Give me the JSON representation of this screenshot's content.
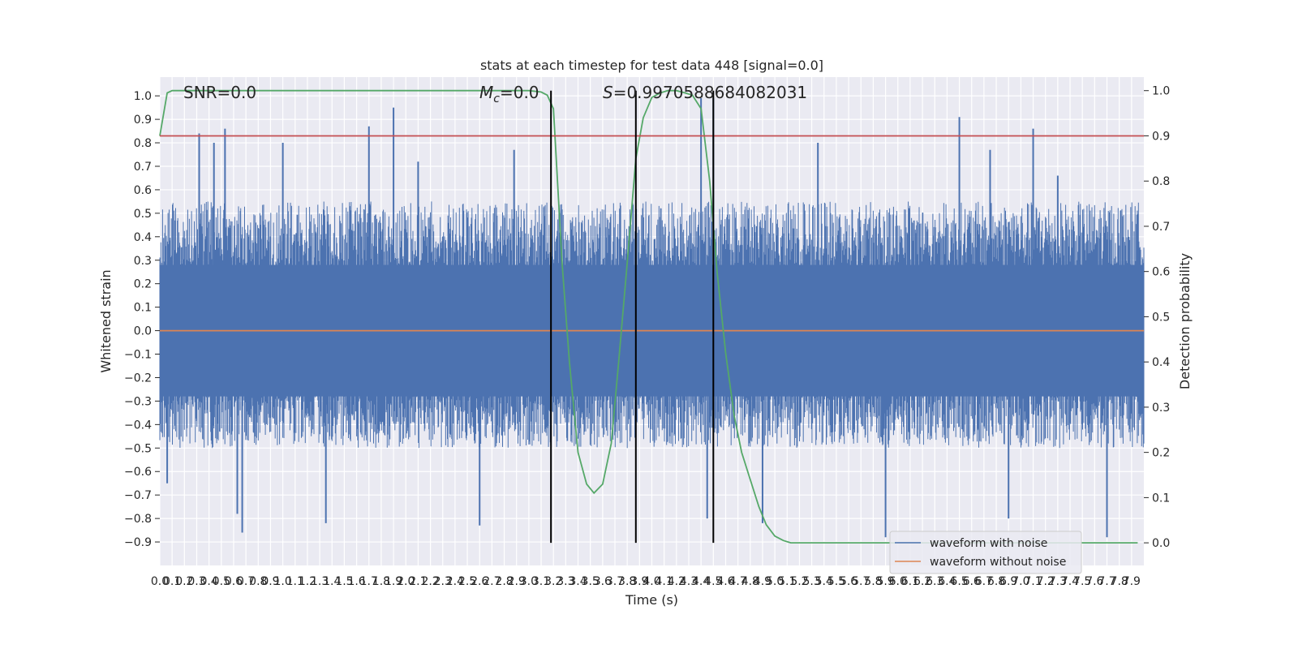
{
  "chart_data": {
    "type": "line",
    "title": "stats at each timestep for test data 448 [signal=0.0]",
    "xlabel": "Time (s)",
    "ylabel": "Whitened strain",
    "ylabel_right": "Detection probability",
    "xlim": [
      0.0,
      8.0
    ],
    "ylim": [
      -1.0,
      1.08
    ],
    "ylim_right": [
      -0.05,
      1.03
    ],
    "x_ticks": [
      0.0,
      0.1,
      0.2,
      0.3,
      0.4,
      0.5,
      0.6,
      0.7,
      0.8,
      0.9,
      1.0,
      1.1,
      1.2,
      1.3,
      1.4,
      1.5,
      1.6,
      1.7,
      1.8,
      1.9,
      2.0,
      2.1,
      2.2,
      2.3,
      2.4,
      2.5,
      2.6,
      2.7,
      2.8,
      2.9,
      3.0,
      3.1,
      3.2,
      3.3,
      3.4,
      3.5,
      3.6,
      3.7,
      3.8,
      3.9,
      4.0,
      4.1,
      4.2,
      4.3,
      4.4,
      4.5,
      4.6,
      4.7,
      4.8,
      4.9,
      5.0,
      5.1,
      5.2,
      5.3,
      5.4,
      5.5,
      5.6,
      5.7,
      5.8,
      5.9,
      6.0,
      6.1,
      6.2,
      6.3,
      6.4,
      6.5,
      6.6,
      6.7,
      6.8,
      6.9,
      7.0,
      7.1,
      7.2,
      7.3,
      7.4,
      7.5,
      7.6,
      7.7,
      7.8,
      7.9
    ],
    "y_ticks": [
      1.0,
      0.9,
      0.8,
      0.7,
      0.6,
      0.5,
      0.4,
      0.3,
      0.2,
      0.1,
      0.0,
      -0.1,
      -0.2,
      -0.3,
      -0.4,
      -0.5,
      -0.6,
      -0.7,
      -0.8,
      -0.9
    ],
    "y_tick_labels": [
      "1.0",
      "0.9",
      "0.8",
      "0.7",
      "0.6",
      "0.5",
      "0.4",
      "0.3",
      "0.2",
      "0.1",
      "0.0",
      "−0.1",
      "−0.2",
      "−0.3",
      "−0.4",
      "−0.5",
      "−0.6",
      "−0.7",
      "−0.8",
      "−0.9"
    ],
    "y_ticks_right": [
      1.0,
      0.9,
      0.8,
      0.7,
      0.6,
      0.5,
      0.4,
      0.3,
      0.2,
      0.1,
      0.0
    ],
    "y_tick_labels_right": [
      "1.0",
      "0.9",
      "0.8",
      "0.7",
      "0.6",
      "0.5",
      "0.4",
      "0.3",
      "0.2",
      "0.1",
      "0.0"
    ],
    "grid": true,
    "legend_placement": "lower-right",
    "annotations": {
      "snr": "SNR=0.0",
      "mc_symbol": "M",
      "mc_sub": "c",
      "mc_value": "=0.0",
      "s_symbol": "S",
      "s_value": "=0.9970588684082031"
    },
    "series": [
      {
        "name": "waveform with noise",
        "axis": "left",
        "color": "#4c72b0",
        "kind": "noise",
        "envelope_pos": 0.55,
        "envelope_neg": -0.5,
        "spike_peaks": [
          {
            "x": 0.32,
            "y": 0.84
          },
          {
            "x": 0.44,
            "y": 0.8
          },
          {
            "x": 0.53,
            "y": 0.86
          },
          {
            "x": 1.0,
            "y": 0.8
          },
          {
            "x": 1.7,
            "y": 0.87
          },
          {
            "x": 1.9,
            "y": 0.95
          },
          {
            "x": 2.1,
            "y": 0.72
          },
          {
            "x": 2.88,
            "y": 0.77
          },
          {
            "x": 4.4,
            "y": 0.99
          },
          {
            "x": 4.5,
            "y": 0.99
          },
          {
            "x": 5.35,
            "y": 0.8
          },
          {
            "x": 6.5,
            "y": 0.91
          },
          {
            "x": 6.75,
            "y": 0.77
          },
          {
            "x": 7.1,
            "y": 0.86
          },
          {
            "x": 7.3,
            "y": 0.66
          },
          {
            "x": 0.06,
            "y": -0.65
          },
          {
            "x": 0.63,
            "y": -0.78
          },
          {
            "x": 0.67,
            "y": -0.86
          },
          {
            "x": 1.35,
            "y": -0.82
          },
          {
            "x": 2.6,
            "y": -0.83
          },
          {
            "x": 4.45,
            "y": -0.8
          },
          {
            "x": 4.9,
            "y": -0.82
          },
          {
            "x": 5.9,
            "y": -0.88
          },
          {
            "x": 6.9,
            "y": -0.8
          },
          {
            "x": 7.7,
            "y": -0.88
          }
        ]
      },
      {
        "name": "waveform without noise",
        "axis": "left",
        "color": "#dd8452",
        "x": [
          0.0,
          8.0
        ],
        "y": [
          0.0,
          0.0
        ]
      },
      {
        "name": "",
        "axis": "right",
        "color": "#55a868",
        "x": [
          0.0,
          0.06,
          0.1,
          0.2,
          0.4,
          0.8,
          1.2,
          1.6,
          2.0,
          2.4,
          2.8,
          3.0,
          3.1,
          3.15,
          3.2,
          3.27,
          3.33,
          3.4,
          3.47,
          3.53,
          3.6,
          3.67,
          3.73,
          3.8,
          3.87,
          3.93,
          4.0,
          4.07,
          4.13,
          4.2,
          4.27,
          4.33,
          4.4,
          4.47,
          4.53,
          4.6,
          4.67,
          4.73,
          4.8,
          4.87,
          4.93,
          5.0,
          5.07,
          5.13,
          5.2,
          5.6,
          6.0,
          6.5,
          7.0,
          7.5,
          7.95
        ],
        "y": [
          0.9,
          0.995,
          1.0,
          1.0,
          1.0,
          1.0,
          1.0,
          1.0,
          1.0,
          1.0,
          1.0,
          1.0,
          0.997,
          0.99,
          0.96,
          0.62,
          0.4,
          0.2,
          0.13,
          0.11,
          0.13,
          0.22,
          0.4,
          0.62,
          0.85,
          0.94,
          0.985,
          0.995,
          1.0,
          1.0,
          0.995,
          0.99,
          0.96,
          0.8,
          0.6,
          0.42,
          0.28,
          0.2,
          0.14,
          0.08,
          0.04,
          0.015,
          0.005,
          0.0,
          0.0,
          0.0,
          0.0,
          0.0,
          0.0,
          0.0,
          0.0
        ]
      },
      {
        "name": "",
        "axis": "right",
        "color": "#c44e52",
        "x": [
          0.0,
          8.0
        ],
        "y": [
          0.9,
          0.9
        ]
      }
    ],
    "vertical_lines": [
      {
        "x": 3.18,
        "color": "#000000"
      },
      {
        "x": 3.87,
        "color": "#000000"
      },
      {
        "x": 4.5,
        "color": "#000000"
      }
    ]
  }
}
